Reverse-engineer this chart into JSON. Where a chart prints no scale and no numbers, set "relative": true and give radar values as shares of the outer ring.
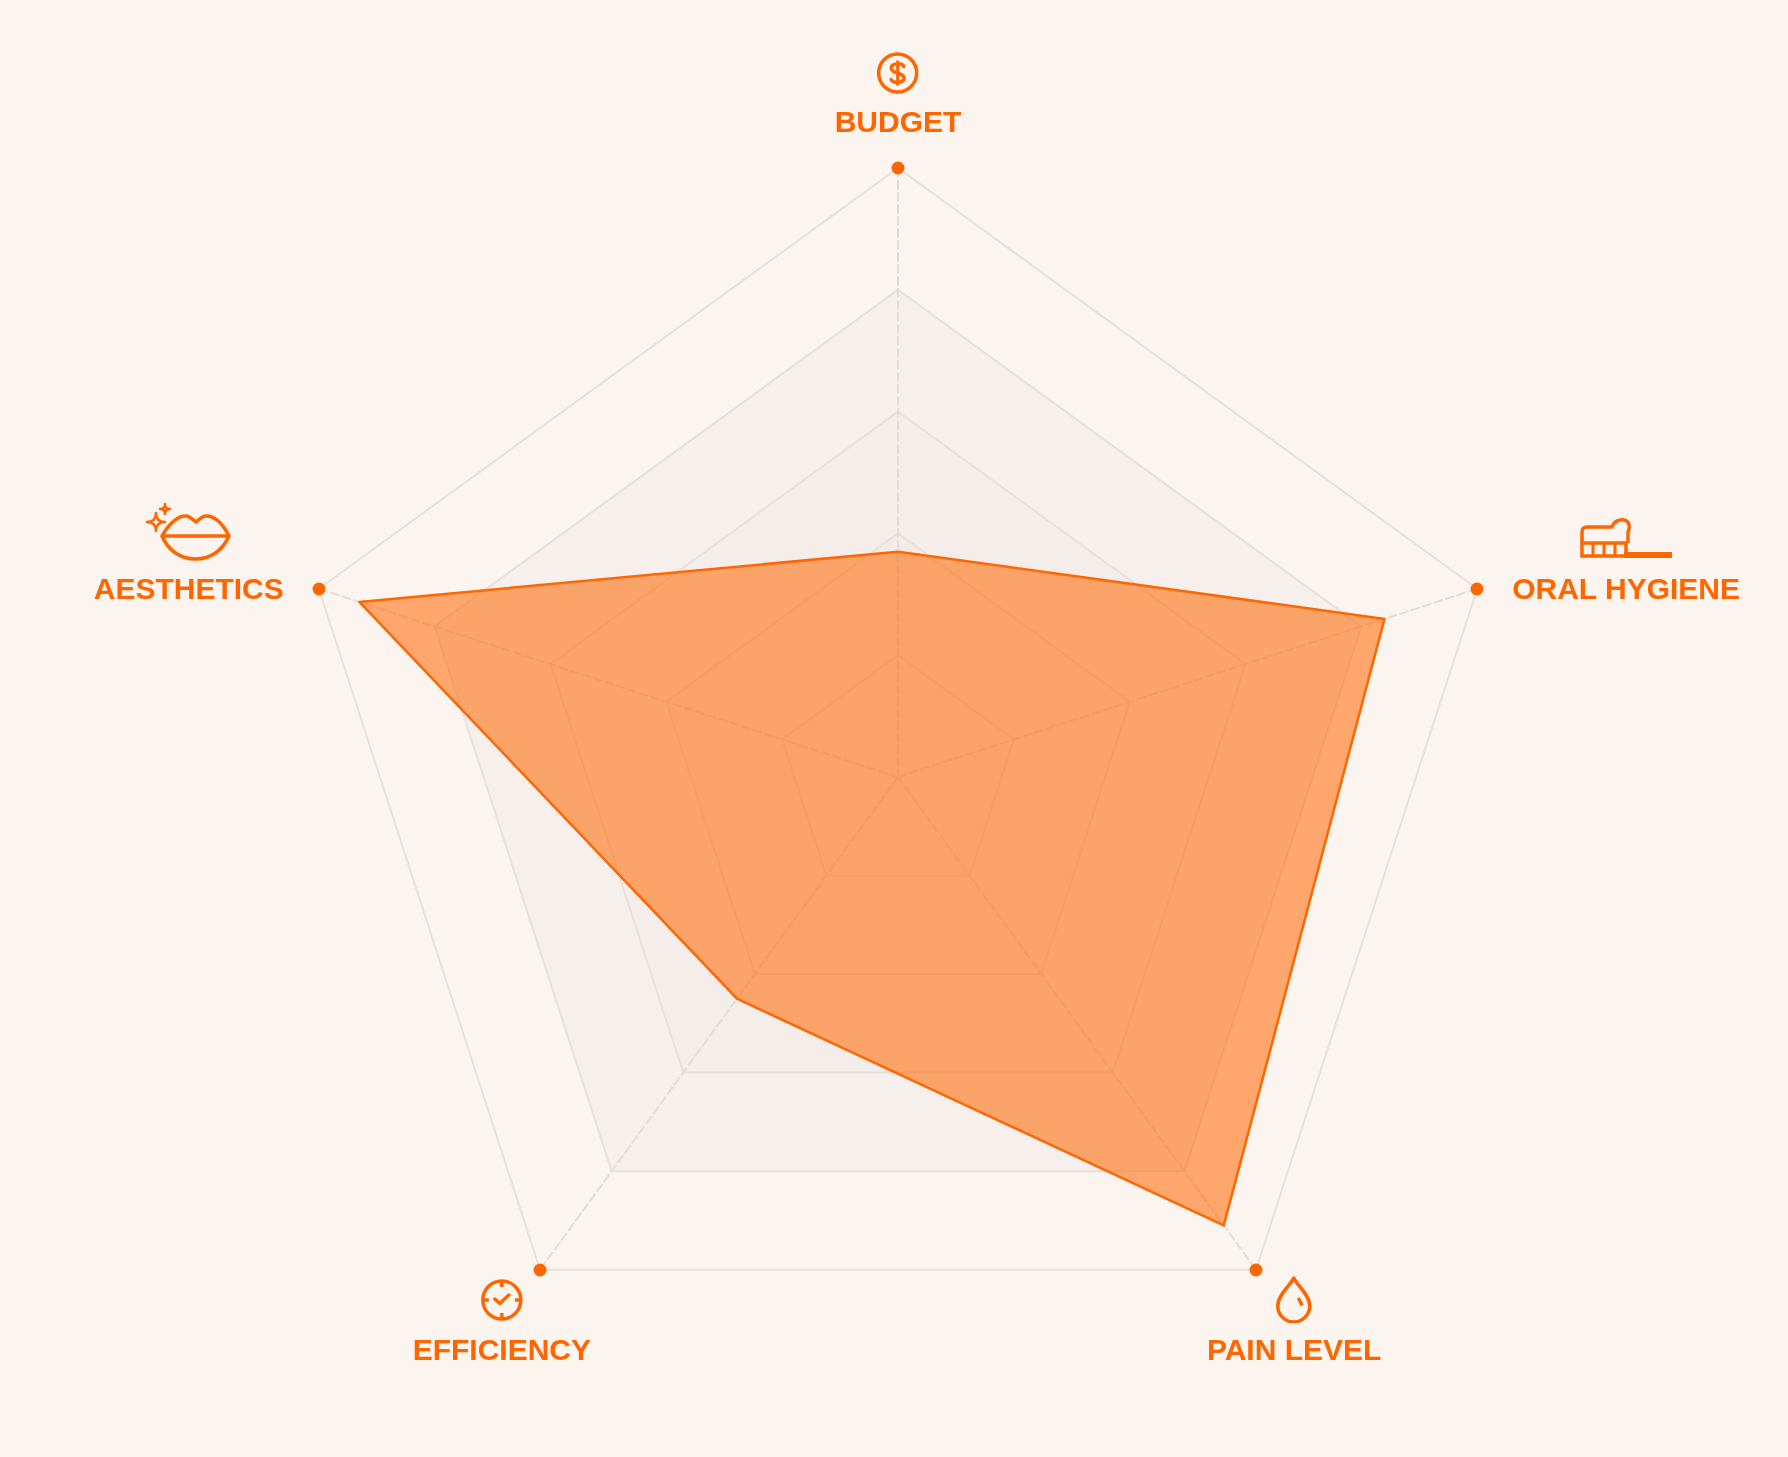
{
  "chart_data": {
    "type": "radar",
    "categories": [
      "BUDGET",
      "ORAL HYGIENE",
      "PAIN LEVEL",
      "EFFICIENCY",
      "AESTHETICS"
    ],
    "series": [
      {
        "color": "#ff6600",
        "values": [
          0.37,
          0.84,
          0.91,
          0.45,
          0.93
        ]
      }
    ],
    "relative": true,
    "marker": "none",
    "grid": true
  }
}
